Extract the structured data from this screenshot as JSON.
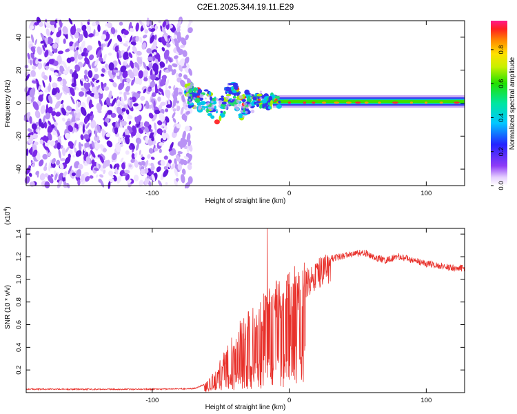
{
  "title": "C2E1.2025.344.19.11.E29",
  "chart_data": [
    {
      "type": "heatmap",
      "name": "spectrogram",
      "xlabel": "Height of straight line (km)",
      "ylabel": "Frequency (Hz)",
      "xlim": [
        -192,
        128
      ],
      "ylim": [
        -50,
        50
      ],
      "xticks": [
        -100,
        0,
        100
      ],
      "yticks": [
        -40,
        -20,
        0,
        20,
        40
      ],
      "xtick_labels": [
        "-100",
        "0",
        "100"
      ],
      "ytick_labels": [
        "-40",
        "-20",
        "0",
        "20",
        "40"
      ],
      "noise_region_x": [
        -192,
        -78
      ],
      "ridge": {
        "x": [
          -72,
          -65,
          -58,
          -52,
          -45,
          -40,
          -35,
          -28,
          -20,
          -10,
          0,
          20,
          50,
          80,
          110,
          128
        ],
        "y": [
          5,
          2,
          0,
          -5,
          4,
          6,
          -3,
          2,
          1,
          1,
          1,
          0,
          0,
          0,
          0,
          0
        ]
      },
      "colorbar": {
        "label": "Normalized spectral amplitude",
        "range": [
          0,
          0.97
        ],
        "ticks": [
          0.0,
          0.2,
          0.4,
          0.6,
          0.8
        ],
        "tick_labels": [
          "0.0",
          "0.2",
          "0.4",
          "0.6",
          "0.8"
        ]
      }
    },
    {
      "type": "line",
      "name": "snr",
      "xlabel": "Height of straight line (km)",
      "ylabel": "SNR (10 * v/v)",
      "multiplier": "(x10",
      "multiplier_exp": "4",
      "multiplier_close": ")",
      "xlim": [
        -192,
        128
      ],
      "ylim": [
        0,
        1.45
      ],
      "xticks": [
        -100,
        0,
        100
      ],
      "yticks": [
        0.2,
        0.4,
        0.6,
        0.8,
        1.0,
        1.2,
        1.4
      ],
      "xtick_labels": [
        "-100",
        "0",
        "100"
      ],
      "ytick_labels": [
        "0.2",
        "0.4",
        "0.6",
        "0.8",
        "1.0",
        "1.2",
        "1.4"
      ],
      "color": "#e8302a",
      "envelope": {
        "x": [
          -192,
          -150,
          -100,
          -70,
          -62,
          -55,
          -50,
          -45,
          -40,
          -35,
          -30,
          -25,
          -20,
          -15,
          -10,
          -5,
          0,
          5,
          10,
          15,
          20,
          30,
          40,
          50,
          55,
          60,
          70,
          80,
          90,
          100,
          110,
          120,
          128
        ],
        "y": [
          0.03,
          0.03,
          0.03,
          0.035,
          0.07,
          0.15,
          0.25,
          0.35,
          0.45,
          0.55,
          0.6,
          0.65,
          0.72,
          0.78,
          0.82,
          0.88,
          0.9,
          0.95,
          1.0,
          1.05,
          1.1,
          1.18,
          1.21,
          1.23,
          1.24,
          1.2,
          1.17,
          1.2,
          1.17,
          1.14,
          1.12,
          1.1,
          1.1
        ]
      },
      "peak": {
        "x": -16,
        "y": 1.45
      }
    }
  ]
}
